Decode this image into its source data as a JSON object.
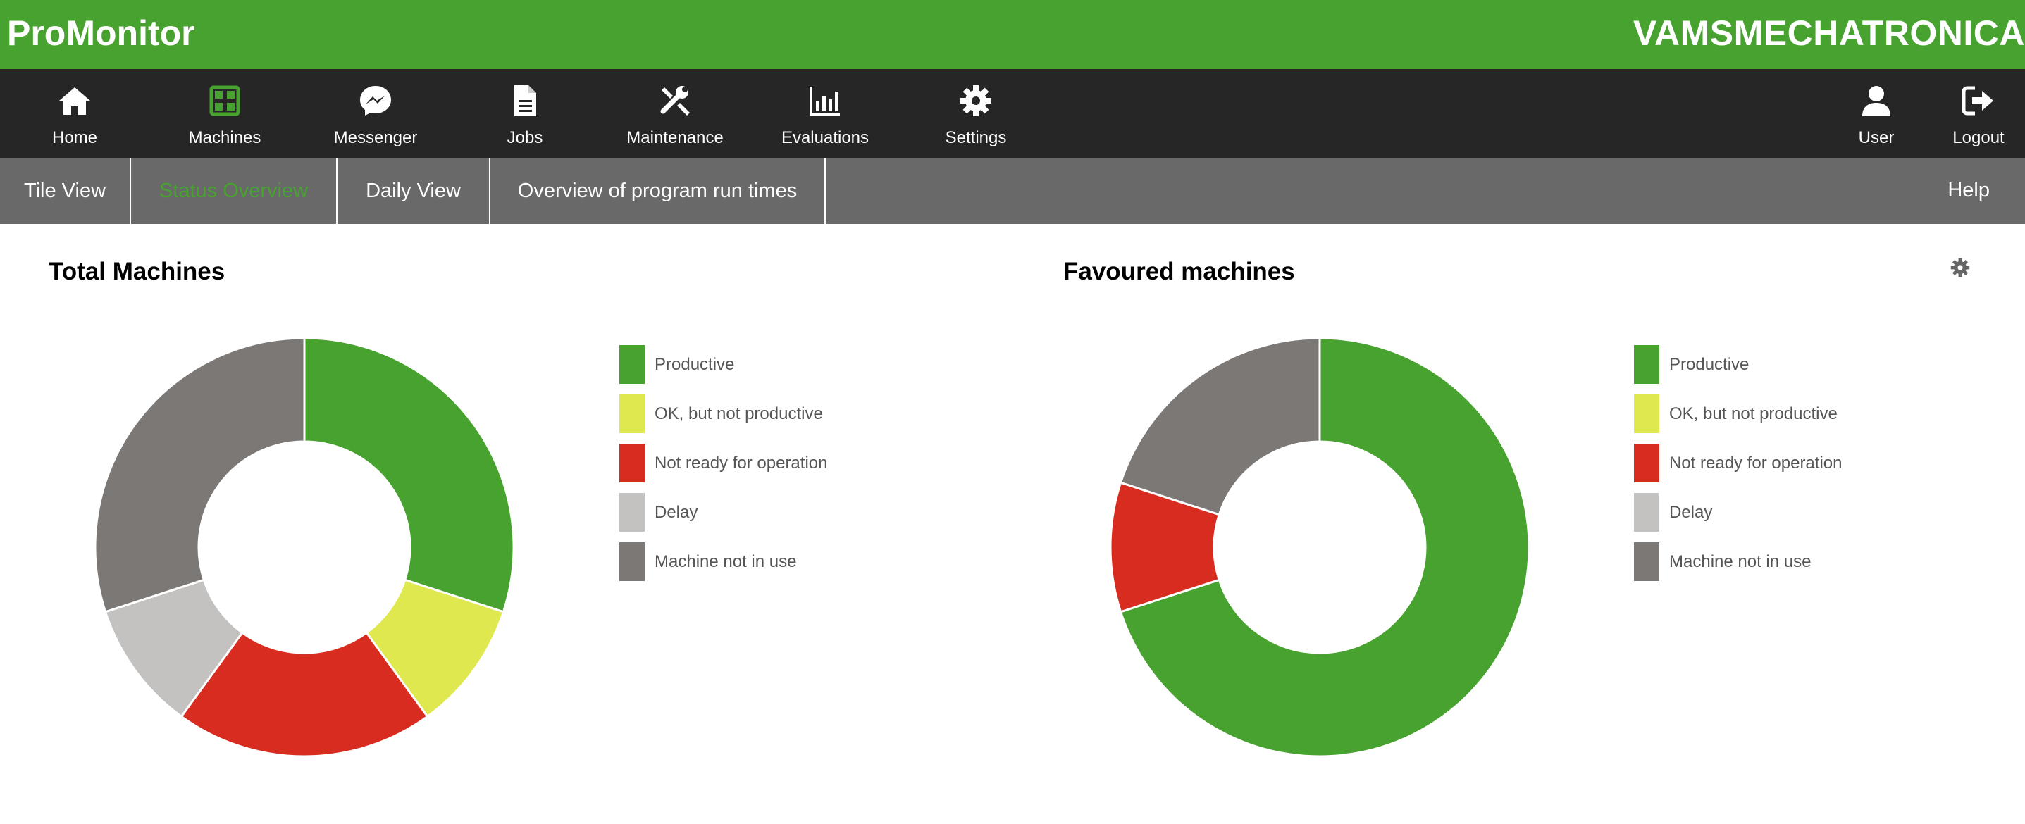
{
  "header": {
    "app_title": "ProMonitor",
    "company": "VAMSMECHATRONICA"
  },
  "nav": {
    "items": [
      {
        "label": "Home",
        "icon": "home-icon"
      },
      {
        "label": "Machines",
        "icon": "grid-icon",
        "active": true
      },
      {
        "label": "Messenger",
        "icon": "messenger-icon"
      },
      {
        "label": "Jobs",
        "icon": "document-icon"
      },
      {
        "label": "Maintenance",
        "icon": "tools-icon"
      },
      {
        "label": "Evaluations",
        "icon": "bar-chart-icon"
      },
      {
        "label": "Settings",
        "icon": "gear-icon"
      },
      {
        "label": "User",
        "icon": "user-icon"
      },
      {
        "label": "Logout",
        "icon": "logout-icon"
      }
    ]
  },
  "subnav": {
    "tabs": [
      {
        "label": "Tile View"
      },
      {
        "label": "Status Overview",
        "active": true
      },
      {
        "label": "Daily View"
      },
      {
        "label": "Overview of program run times"
      }
    ],
    "help": "Help"
  },
  "colors": {
    "brand_green": "#48a22f",
    "productive": "#48a22f",
    "ok_not_productive": "#e0e84f",
    "not_ready": "#d92c20",
    "delay": "#c4c1c1",
    "not_in_use": "#7b7876"
  },
  "legend": [
    {
      "label": "Productive",
      "color": "#48a22f"
    },
    {
      "label": "OK, but not productive",
      "color": "#e0e84f"
    },
    {
      "label": "Not ready for operation",
      "color": "#d92c20"
    },
    {
      "label": "Delay",
      "color": "#c4c1c1"
    },
    {
      "label": "Machine not in use",
      "color": "#7b7876"
    }
  ],
  "panels": {
    "total": {
      "title": "Total Machines"
    },
    "favoured": {
      "title": "Favoured machines",
      "settings_icon": "gear-icon"
    }
  },
  "chart_data": [
    {
      "type": "pie",
      "title": "Total Machines",
      "categories": [
        "Productive",
        "OK, but not productive",
        "Not ready for operation",
        "Delay",
        "Machine not in use"
      ],
      "values": [
        3,
        1,
        2,
        1,
        3
      ],
      "colors": [
        "#48a22f",
        "#e0e84f",
        "#d92c20",
        "#c4c1c1",
        "#7b7876"
      ],
      "donut": true
    },
    {
      "type": "pie",
      "title": "Favoured machines",
      "categories": [
        "Productive",
        "OK, but not productive",
        "Not ready for operation",
        "Delay",
        "Machine not in use"
      ],
      "values": [
        7,
        0,
        1,
        0,
        2
      ],
      "colors": [
        "#48a22f",
        "#e0e84f",
        "#d92c20",
        "#c4c1c1",
        "#7b7876"
      ],
      "donut": true
    }
  ]
}
